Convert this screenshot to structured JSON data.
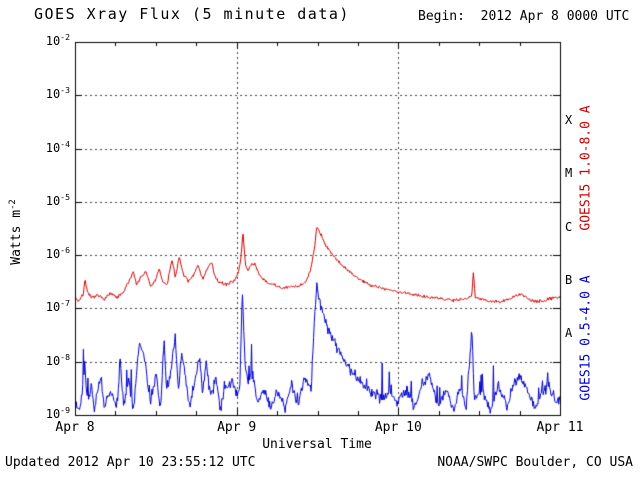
{
  "page": {
    "updated": "Updated 2012 Apr 10 23:55:12 UTC",
    "credit": "NOAA/SWPC Boulder, CO USA"
  },
  "chart_data": {
    "type": "line",
    "title": "GOES Xray Flux (5 minute data)",
    "begin_label": "Begin:  2012 Apr 8 0000 UTC",
    "xlabel": "Universal Time",
    "ylabel": {
      "text": "Watts m",
      "sup": "-2"
    },
    "x_range_days": [
      0,
      3
    ],
    "y_log_range": [
      -9,
      -2
    ],
    "x_ticks": [
      {
        "t": 0,
        "label": "Apr 8"
      },
      {
        "t": 1,
        "label": "Apr 9"
      },
      {
        "t": 2,
        "label": "Apr 10"
      },
      {
        "t": 3,
        "label": "Apr 11"
      }
    ],
    "y_tick_exponents": [
      -2,
      -3,
      -4,
      -5,
      -6,
      -7,
      -8,
      -9
    ],
    "flare_classes": [
      {
        "label": "X",
        "log_center": -3.5
      },
      {
        "label": "M",
        "log_center": -4.5
      },
      {
        "label": "C",
        "log_center": -5.5
      },
      {
        "label": "B",
        "log_center": -6.5
      },
      {
        "label": "A",
        "log_center": -7.5
      }
    ],
    "grid": {
      "h_exponents": [
        -3,
        -4,
        -5,
        -6,
        -7,
        -8
      ],
      "v_days": [
        1,
        2
      ]
    },
    "colors": {
      "long": "#cc0000",
      "short": "#0000cc",
      "axis": "#000000",
      "grid": "#444444"
    },
    "right_axis_labels": [
      {
        "text": "GOES15 1.0-8.0 A",
        "color_key": "long"
      },
      {
        "text": "GOES15 0.5-4.0 A",
        "color_key": "short"
      }
    ],
    "series": [
      {
        "name": "GOES15 1.0-8.0 A",
        "color_key": "long",
        "noise_decades": 0.03,
        "points_t_log10flux": [
          [
            0.0,
            -6.78
          ],
          [
            0.02,
            -6.86
          ],
          [
            0.05,
            -6.75
          ],
          [
            0.062,
            -6.45
          ],
          [
            0.08,
            -6.72
          ],
          [
            0.1,
            -6.8
          ],
          [
            0.14,
            -6.76
          ],
          [
            0.18,
            -6.82
          ],
          [
            0.22,
            -6.72
          ],
          [
            0.26,
            -6.8
          ],
          [
            0.3,
            -6.7
          ],
          [
            0.34,
            -6.45
          ],
          [
            0.36,
            -6.3
          ],
          [
            0.38,
            -6.55
          ],
          [
            0.41,
            -6.4
          ],
          [
            0.44,
            -6.32
          ],
          [
            0.47,
            -6.6
          ],
          [
            0.5,
            -6.45
          ],
          [
            0.52,
            -6.25
          ],
          [
            0.54,
            -6.5
          ],
          [
            0.57,
            -6.55
          ],
          [
            0.6,
            -6.08
          ],
          [
            0.62,
            -6.4
          ],
          [
            0.645,
            -6.05
          ],
          [
            0.67,
            -6.35
          ],
          [
            0.7,
            -6.5
          ],
          [
            0.73,
            -6.4
          ],
          [
            0.76,
            -6.18
          ],
          [
            0.79,
            -6.45
          ],
          [
            0.82,
            -6.25
          ],
          [
            0.845,
            -6.13
          ],
          [
            0.87,
            -6.45
          ],
          [
            0.9,
            -6.52
          ],
          [
            0.94,
            -6.55
          ],
          [
            0.98,
            -6.48
          ],
          [
            1.01,
            -6.35
          ],
          [
            1.025,
            -6.1
          ],
          [
            1.039,
            -5.57
          ],
          [
            1.055,
            -6.2
          ],
          [
            1.07,
            -6.28
          ],
          [
            1.09,
            -6.18
          ],
          [
            1.11,
            -6.15
          ],
          [
            1.14,
            -6.38
          ],
          [
            1.18,
            -6.5
          ],
          [
            1.23,
            -6.56
          ],
          [
            1.28,
            -6.62
          ],
          [
            1.33,
            -6.6
          ],
          [
            1.38,
            -6.58
          ],
          [
            1.43,
            -6.5
          ],
          [
            1.46,
            -6.25
          ],
          [
            1.48,
            -5.9
          ],
          [
            1.497,
            -5.43
          ],
          [
            1.515,
            -5.58
          ],
          [
            1.55,
            -5.8
          ],
          [
            1.6,
            -6.02
          ],
          [
            1.65,
            -6.18
          ],
          [
            1.7,
            -6.32
          ],
          [
            1.76,
            -6.45
          ],
          [
            1.82,
            -6.55
          ],
          [
            1.88,
            -6.6
          ],
          [
            1.95,
            -6.66
          ],
          [
            2.02,
            -6.7
          ],
          [
            2.1,
            -6.74
          ],
          [
            2.18,
            -6.78
          ],
          [
            2.26,
            -6.82
          ],
          [
            2.34,
            -6.84
          ],
          [
            2.42,
            -6.82
          ],
          [
            2.455,
            -6.75
          ],
          [
            2.465,
            -6.28
          ],
          [
            2.475,
            -6.78
          ],
          [
            2.55,
            -6.86
          ],
          [
            2.62,
            -6.88
          ],
          [
            2.68,
            -6.84
          ],
          [
            2.73,
            -6.76
          ],
          [
            2.76,
            -6.72
          ],
          [
            2.8,
            -6.82
          ],
          [
            2.85,
            -6.88
          ],
          [
            2.9,
            -6.86
          ],
          [
            2.95,
            -6.8
          ],
          [
            3.0,
            -6.78
          ]
        ]
      },
      {
        "name": "GOES15 0.5-4.0 A",
        "color_key": "short",
        "noise_decades": 0.1,
        "spark": {
          "prob": 0.08,
          "max": 0.7,
          "below": -8.0
        },
        "points_t_log10flux": [
          [
            0.0,
            -8.8
          ],
          [
            0.03,
            -8.9
          ],
          [
            0.06,
            -8.15
          ],
          [
            0.08,
            -8.85
          ],
          [
            0.1,
            -8.4
          ],
          [
            0.12,
            -8.9
          ],
          [
            0.16,
            -8.25
          ],
          [
            0.18,
            -8.85
          ],
          [
            0.22,
            -8.5
          ],
          [
            0.26,
            -8.9
          ],
          [
            0.28,
            -7.95
          ],
          [
            0.3,
            -8.85
          ],
          [
            0.33,
            -8.35
          ],
          [
            0.36,
            -8.9
          ],
          [
            0.4,
            -7.6
          ],
          [
            0.42,
            -7.8
          ],
          [
            0.44,
            -8.05
          ],
          [
            0.46,
            -8.85
          ],
          [
            0.5,
            -8.25
          ],
          [
            0.53,
            -8.9
          ],
          [
            0.55,
            -7.6
          ],
          [
            0.57,
            -8.6
          ],
          [
            0.6,
            -8.0
          ],
          [
            0.62,
            -7.55
          ],
          [
            0.64,
            -8.5
          ],
          [
            0.66,
            -7.85
          ],
          [
            0.68,
            -8.2
          ],
          [
            0.71,
            -8.85
          ],
          [
            0.74,
            -8.35
          ],
          [
            0.77,
            -7.9
          ],
          [
            0.79,
            -8.6
          ],
          [
            0.81,
            -8.0
          ],
          [
            0.84,
            -8.7
          ],
          [
            0.87,
            -8.3
          ],
          [
            0.9,
            -8.85
          ],
          [
            0.93,
            -8.5
          ],
          [
            0.97,
            -8.35
          ],
          [
            1.0,
            -8.6
          ],
          [
            1.02,
            -8.45
          ],
          [
            1.035,
            -6.62
          ],
          [
            1.05,
            -7.9
          ],
          [
            1.07,
            -8.4
          ],
          [
            1.1,
            -8.25
          ],
          [
            1.13,
            -8.8
          ],
          [
            1.17,
            -8.5
          ],
          [
            1.21,
            -8.85
          ],
          [
            1.25,
            -8.55
          ],
          [
            1.3,
            -8.85
          ],
          [
            1.34,
            -8.45
          ],
          [
            1.38,
            -8.8
          ],
          [
            1.42,
            -8.3
          ],
          [
            1.46,
            -8.55
          ],
          [
            1.48,
            -7.3
          ],
          [
            1.497,
            -6.55
          ],
          [
            1.52,
            -6.95
          ],
          [
            1.56,
            -7.35
          ],
          [
            1.62,
            -7.75
          ],
          [
            1.7,
            -8.15
          ],
          [
            1.8,
            -8.5
          ],
          [
            1.9,
            -8.7
          ],
          [
            1.95,
            -8.55
          ],
          [
            2.0,
            -8.8
          ],
          [
            2.05,
            -8.5
          ],
          [
            2.1,
            -8.85
          ],
          [
            2.15,
            -8.4
          ],
          [
            2.2,
            -8.3
          ],
          [
            2.24,
            -8.85
          ],
          [
            2.3,
            -8.55
          ],
          [
            2.34,
            -8.9
          ],
          [
            2.38,
            -8.5
          ],
          [
            2.42,
            -8.85
          ],
          [
            2.455,
            -7.35
          ],
          [
            2.47,
            -8.7
          ],
          [
            2.52,
            -8.55
          ],
          [
            2.57,
            -8.9
          ],
          [
            2.62,
            -8.45
          ],
          [
            2.67,
            -8.85
          ],
          [
            2.72,
            -8.35
          ],
          [
            2.76,
            -8.3
          ],
          [
            2.8,
            -8.55
          ],
          [
            2.85,
            -8.9
          ],
          [
            2.89,
            -8.6
          ],
          [
            2.93,
            -8.4
          ],
          [
            2.97,
            -8.75
          ],
          [
            3.0,
            -8.7
          ]
        ]
      }
    ]
  }
}
